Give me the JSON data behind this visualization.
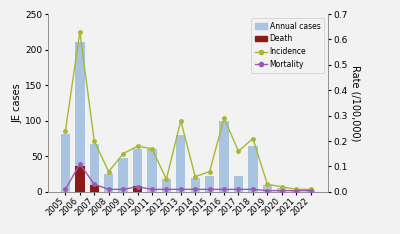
{
  "years": [
    2005,
    2006,
    2007,
    2008,
    2009,
    2010,
    2011,
    2012,
    2013,
    2014,
    2015,
    2016,
    2017,
    2018,
    2019,
    2020,
    2021,
    2022
  ],
  "annual_cases": [
    82,
    210,
    67,
    25,
    48,
    60,
    60,
    18,
    80,
    20,
    22,
    100,
    22,
    65,
    10,
    5,
    3,
    3
  ],
  "deaths": [
    0,
    36,
    10,
    0,
    0,
    8,
    0,
    0,
    0,
    0,
    0,
    0,
    0,
    0,
    0,
    0,
    0,
    0
  ],
  "incidence": [
    0.24,
    0.63,
    0.2,
    0.08,
    0.15,
    0.18,
    0.17,
    0.05,
    0.28,
    0.06,
    0.08,
    0.29,
    0.16,
    0.21,
    0.03,
    0.02,
    0.01,
    0.01
  ],
  "mortality": [
    0.01,
    0.11,
    0.03,
    0.01,
    0.01,
    0.02,
    0.01,
    0.01,
    0.01,
    0.01,
    0.01,
    0.01,
    0.01,
    0.01,
    0.005,
    0.005,
    0.005,
    0.005
  ],
  "bar_color": "#a8c4e0",
  "death_color": "#8b1a1a",
  "incidence_color": "#a8b832",
  "mortality_color": "#9b59b6",
  "ylabel_left": "JE cases",
  "ylabel_right": "Rate (/100,000)",
  "ylim_left": [
    0,
    250
  ],
  "ylim_right": [
    0,
    0.7
  ],
  "yticks_left": [
    0,
    50,
    100,
    150,
    200,
    250
  ],
  "yticks_right": [
    0,
    0.1,
    0.2,
    0.3,
    0.4,
    0.5,
    0.6,
    0.7
  ],
  "legend_labels": [
    "Annual cases",
    "Death",
    "Incidence",
    "Mortality"
  ],
  "figsize": [
    4.0,
    2.34
  ],
  "dpi": 100,
  "bg_color": "#f2f2f2"
}
